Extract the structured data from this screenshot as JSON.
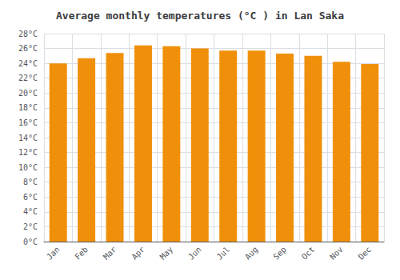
{
  "chart_data": {
    "type": "bar",
    "title": "Average monthly temperatures (°C ) in Lan Saka",
    "categories": [
      "Jan",
      "Feb",
      "Mar",
      "Apr",
      "May",
      "Jun",
      "Jul",
      "Aug",
      "Sep",
      "Oct",
      "Nov",
      "Dec"
    ],
    "values": [
      24.0,
      24.7,
      25.4,
      26.4,
      26.3,
      26.0,
      25.7,
      25.7,
      25.3,
      25.0,
      24.2,
      23.9
    ],
    "color": "#F0900A",
    "ylim": [
      0,
      28
    ],
    "yticks": [
      {
        "value": 0,
        "label": "0°C"
      },
      {
        "value": 2,
        "label": "2°C"
      },
      {
        "value": 4,
        "label": "4°C"
      },
      {
        "value": 6,
        "label": "6°C"
      },
      {
        "value": 8,
        "label": "8°C"
      },
      {
        "value": 10,
        "label": "10°C"
      },
      {
        "value": 12,
        "label": "12°C"
      },
      {
        "value": 14,
        "label": "14°C"
      },
      {
        "value": 16,
        "label": "16°C"
      },
      {
        "value": 18,
        "label": "18°C"
      },
      {
        "value": 20,
        "label": "20°C"
      },
      {
        "value": 22,
        "label": "22°C"
      },
      {
        "value": 24,
        "label": "24°C"
      },
      {
        "value": 26,
        "label": "26°C"
      },
      {
        "value": 28,
        "label": "28°C"
      }
    ],
    "grid": true
  }
}
